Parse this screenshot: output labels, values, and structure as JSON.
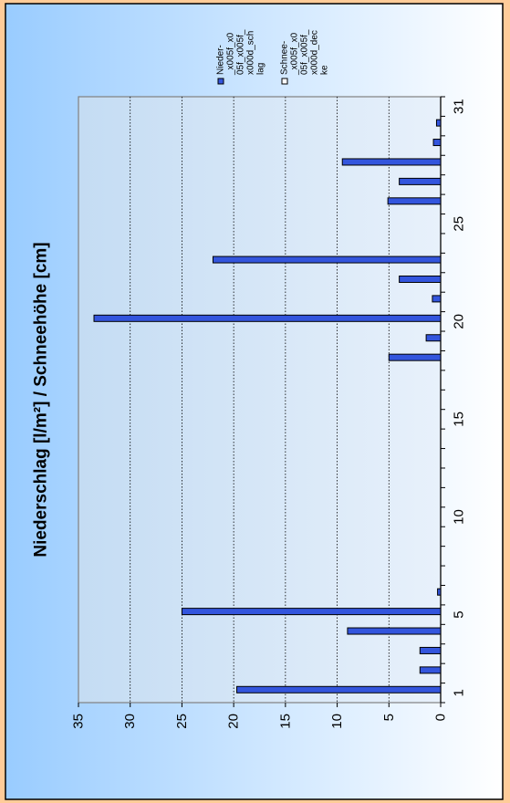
{
  "chart_data": {
    "type": "bar",
    "orientation": "rotated-90-clockwise",
    "title": "Niederschlag [l/m²] / Schneehöhe [cm]",
    "categories": [
      1,
      2,
      3,
      4,
      5,
      6,
      7,
      8,
      9,
      10,
      11,
      12,
      13,
      14,
      15,
      16,
      17,
      18,
      19,
      20,
      21,
      22,
      23,
      24,
      25,
      26,
      27,
      28,
      29,
      30,
      31
    ],
    "x_tick_labels": [
      "1",
      "5",
      "10",
      "15",
      "20",
      "25",
      "31"
    ],
    "x_tick_positions": [
      1,
      5,
      10,
      15,
      20,
      25,
      31
    ],
    "series": [
      {
        "name": "Nieder-_x005f_x005f_x005f_x000d_schlag",
        "color": "#3355dd",
        "values": [
          19.7,
          2.0,
          2.0,
          9.0,
          25.0,
          0.3,
          null,
          null,
          null,
          null,
          null,
          null,
          null,
          null,
          null,
          null,
          null,
          5.0,
          1.4,
          33.5,
          0.8,
          4.0,
          22.0,
          null,
          null,
          5.1,
          4.0,
          9.5,
          0.7,
          0.4,
          null
        ]
      },
      {
        "name": "Schnee-_x005f_x005f_x005f_x000d_decke",
        "color": "#ffffff",
        "values": [
          null,
          null,
          null,
          null,
          null,
          null,
          null,
          null,
          null,
          null,
          null,
          null,
          null,
          null,
          null,
          null,
          null,
          null,
          null,
          null,
          null,
          null,
          null,
          null,
          null,
          null,
          null,
          null,
          null,
          null,
          null
        ]
      }
    ],
    "ylim": [
      0,
      35
    ],
    "yticks": [
      "0",
      "5",
      "10",
      "15",
      "20",
      "25",
      "30",
      "35"
    ],
    "grid": true,
    "legend_position": "top-right",
    "legend_labels": [
      [
        "Nieder-",
        "_x005f_x0",
        "05f_x005f_",
        "x000d_sch",
        "lag"
      ],
      [
        "Schnee-",
        "_x005f_x0",
        "05f_x005f_",
        "x000d_dec",
        "ke"
      ]
    ],
    "colors": {
      "page_bg": "#ffcc99",
      "chart_bg_light": "#ffffff",
      "chart_bg_blue": "#99ccff",
      "plot_bg": "#cfe2f5",
      "bar_fill": "#3355dd"
    }
  }
}
